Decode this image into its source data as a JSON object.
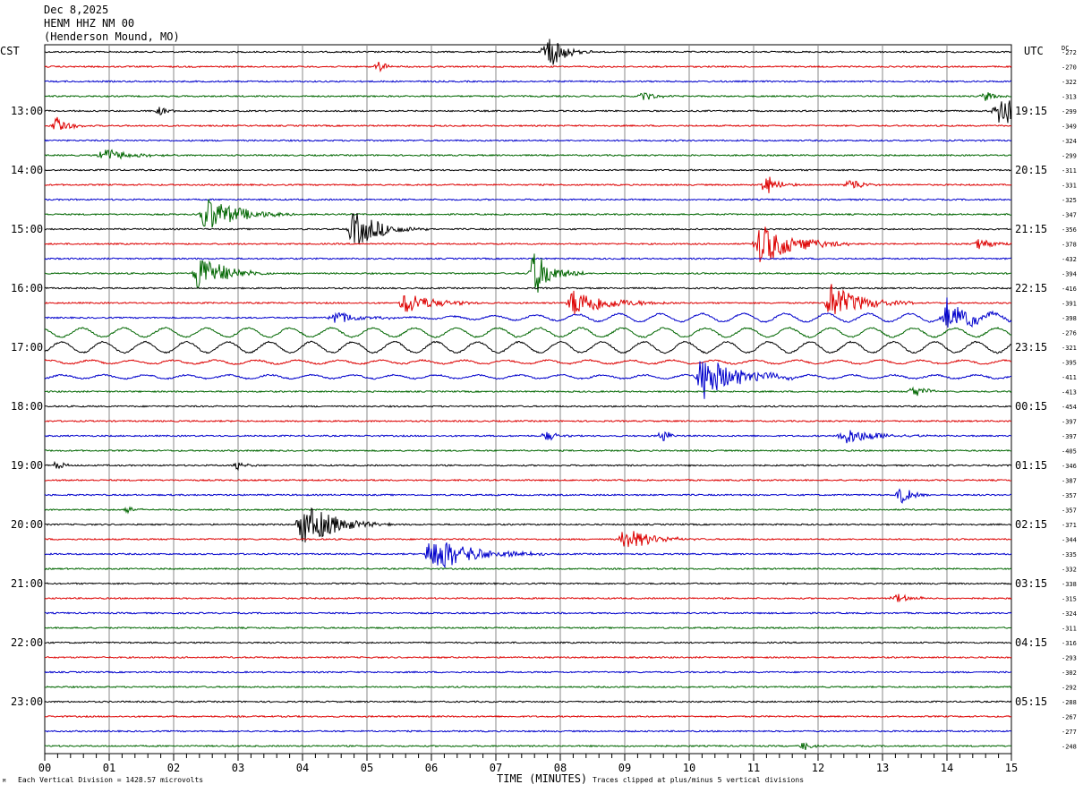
{
  "header": {
    "date": "Dec 8,2025",
    "station": "HENM HHZ NM 00",
    "location": "(Henderson Mound, MO)"
  },
  "left_tz": "CST",
  "right_tz": "UTC",
  "dc_label": "DC",
  "footer": {
    "scale_note": "Each Vertical Division = 1428.57 microvolts",
    "xlabel": "TIME (MINUTES)",
    "clip_note": "Traces clipped at plus/minus 5 vertical divisions"
  },
  "colors": {
    "cycle": [
      "#000000",
      "#dd0000",
      "#0000cc",
      "#006600"
    ],
    "grid": "#888888"
  },
  "chart_data": {
    "type": "line",
    "description": "helicorder, 15 minutes per line",
    "x": {
      "min": 0,
      "max": 15,
      "ticks": [
        "00",
        "01",
        "02",
        "03",
        "04",
        "05",
        "06",
        "07",
        "08",
        "09",
        "10",
        "11",
        "12",
        "13",
        "14",
        "15"
      ]
    },
    "rows": 48,
    "hour_labels_left": [
      "13:00",
      "14:00",
      "15:00",
      "16:00",
      "17:00",
      "18:00",
      "19:00",
      "20:00",
      "21:00",
      "22:00",
      "23:00"
    ],
    "hour_labels_right": [
      "19:15",
      "20:15",
      "21:15",
      "22:15",
      "23:15",
      "00:15",
      "01:15",
      "02:15",
      "03:15",
      "04:15",
      "05:15"
    ],
    "dc_offsets": [
      "272",
      "270",
      "322",
      "313",
      "299",
      "349",
      "324",
      "299",
      "311",
      "331",
      "325",
      "347",
      "356",
      "378",
      "432",
      "394",
      "416",
      "391",
      "398",
      "276",
      "321",
      "395",
      "411",
      "413",
      "454",
      "397",
      "397",
      "405",
      "346",
      "387",
      "357",
      "357",
      "371",
      "344",
      "335",
      "332",
      "338",
      "315",
      "324",
      "311",
      "316",
      "293",
      "302",
      "292",
      "288",
      "267",
      "277",
      "248"
    ],
    "events": [
      {
        "row": 0,
        "minute": 7.8,
        "amplitude": 1.3,
        "duration_min": 0.7
      },
      {
        "row": 1,
        "minute": 5.2,
        "amplitude": 0.35,
        "duration_min": 0.4
      },
      {
        "row": 3,
        "minute": 9.3,
        "amplitude": 0.3,
        "duration_min": 0.6
      },
      {
        "row": 3,
        "minute": 14.6,
        "amplitude": 0.4,
        "duration_min": 0.5
      },
      {
        "row": 4,
        "minute": 1.8,
        "amplitude": 0.35,
        "duration_min": 0.3
      },
      {
        "row": 4,
        "minute": 14.8,
        "amplitude": 1.5,
        "duration_min": 0.7
      },
      {
        "row": 5,
        "minute": 0.2,
        "amplitude": 0.6,
        "duration_min": 0.5
      },
      {
        "row": 7,
        "minute": 0.9,
        "amplitude": 0.5,
        "duration_min": 1.2
      },
      {
        "row": 9,
        "minute": 11.2,
        "amplitude": 0.7,
        "duration_min": 0.5
      },
      {
        "row": 9,
        "minute": 12.5,
        "amplitude": 0.5,
        "duration_min": 0.5
      },
      {
        "row": 11,
        "minute": 2.5,
        "amplitude": 1.3,
        "duration_min": 1.4
      },
      {
        "row": 12,
        "minute": 4.8,
        "amplitude": 1.3,
        "duration_min": 1.2
      },
      {
        "row": 13,
        "minute": 11.1,
        "amplitude": 1.5,
        "duration_min": 1.5
      },
      {
        "row": 13,
        "minute": 14.5,
        "amplitude": 0.4,
        "duration_min": 0.8
      },
      {
        "row": 15,
        "minute": 2.4,
        "amplitude": 1.4,
        "duration_min": 1.1
      },
      {
        "row": 15,
        "minute": 7.6,
        "amplitude": 1.6,
        "duration_min": 0.8
      },
      {
        "row": 17,
        "minute": 5.6,
        "amplitude": 0.8,
        "duration_min": 1.2
      },
      {
        "row": 17,
        "minute": 8.2,
        "amplitude": 1.0,
        "duration_min": 1.6
      },
      {
        "row": 17,
        "minute": 12.2,
        "amplitude": 1.3,
        "duration_min": 1.3
      },
      {
        "row": 18,
        "minute": 4.5,
        "amplitude": 0.5,
        "duration_min": 1.0
      },
      {
        "row": 18,
        "minute": 14.0,
        "amplitude": 1.2,
        "duration_min": 1.0
      },
      {
        "row": 22,
        "minute": 10.2,
        "amplitude": 1.6,
        "duration_min": 1.5
      },
      {
        "row": 23,
        "minute": 13.5,
        "amplitude": 0.5,
        "duration_min": 0.5
      },
      {
        "row": 26,
        "minute": 7.8,
        "amplitude": 0.4,
        "duration_min": 0.4
      },
      {
        "row": 26,
        "minute": 9.6,
        "amplitude": 0.5,
        "duration_min": 0.3
      },
      {
        "row": 26,
        "minute": 12.4,
        "amplitude": 0.6,
        "duration_min": 1.5
      },
      {
        "row": 28,
        "minute": 0.2,
        "amplitude": 0.3,
        "duration_min": 0.3
      },
      {
        "row": 28,
        "minute": 3.0,
        "amplitude": 0.4,
        "duration_min": 0.3
      },
      {
        "row": 30,
        "minute": 13.3,
        "amplitude": 0.6,
        "duration_min": 0.5
      },
      {
        "row": 31,
        "minute": 1.3,
        "amplitude": 0.3,
        "duration_min": 0.3
      },
      {
        "row": 32,
        "minute": 4.0,
        "amplitude": 1.6,
        "duration_min": 1.4
      },
      {
        "row": 33,
        "minute": 9.0,
        "amplitude": 0.8,
        "duration_min": 1.2
      },
      {
        "row": 34,
        "minute": 6.0,
        "amplitude": 1.3,
        "duration_min": 1.8
      },
      {
        "row": 37,
        "minute": 13.2,
        "amplitude": 0.3,
        "duration_min": 0.8
      },
      {
        "row": 47,
        "minute": 11.8,
        "amplitude": 0.3,
        "duration_min": 0.3
      }
    ],
    "microseism_rows": [
      18,
      19,
      20,
      21,
      22
    ]
  }
}
